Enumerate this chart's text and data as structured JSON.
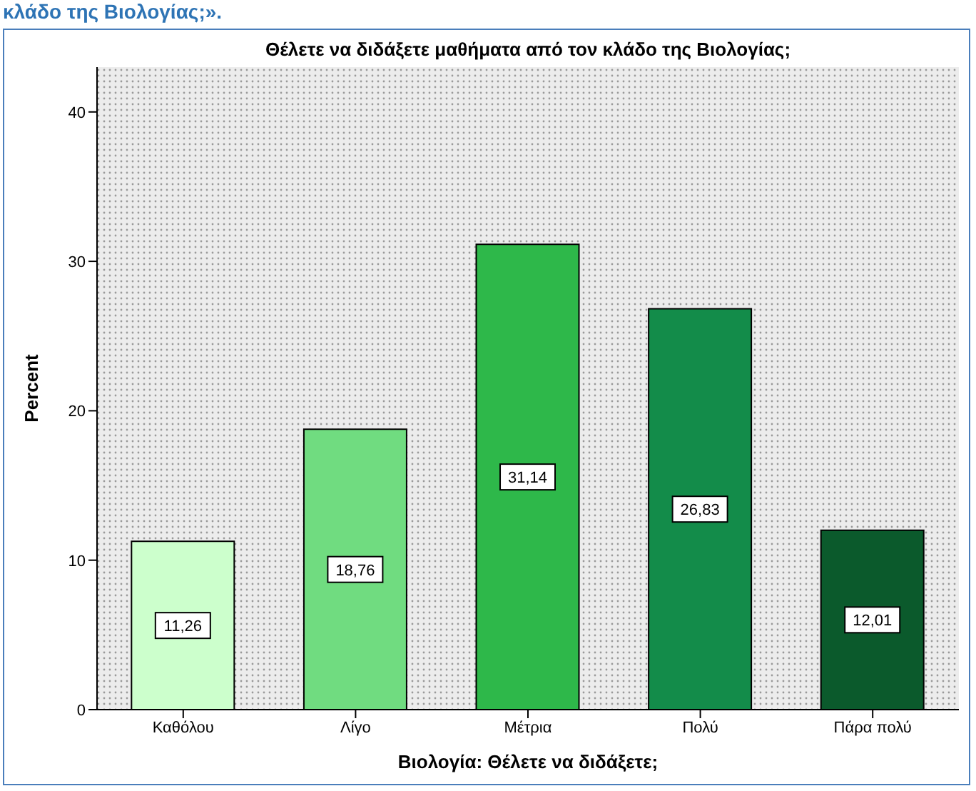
{
  "chart_data": {
    "type": "bar",
    "title": "Θέλετε να διδάξετε μαθήματα από τον κλάδο της Βιολογίας;",
    "xlabel": "Βιολογία: Θέλετε να διδάξετε;",
    "ylabel": "Percent",
    "annotations": [
      "κλάδο της Βιολογίας;»."
    ],
    "categories": [
      "Καθόλου",
      "Λίγο",
      "Μέτρια",
      "Πολύ",
      "Πάρα πολύ"
    ],
    "values": [
      11.26,
      18.76,
      31.14,
      26.83,
      12.01
    ],
    "value_labels": [
      "11,26",
      "18,76",
      "31,14",
      "26,83",
      "12,01"
    ],
    "colors": [
      "#ccffcc",
      "#70dc80",
      "#2eb84a",
      "#138c4a",
      "#0b5a2c"
    ],
    "ylim": [
      0,
      43
    ],
    "yticks": [
      0,
      10,
      20,
      30,
      40
    ],
    "grid": false
  }
}
